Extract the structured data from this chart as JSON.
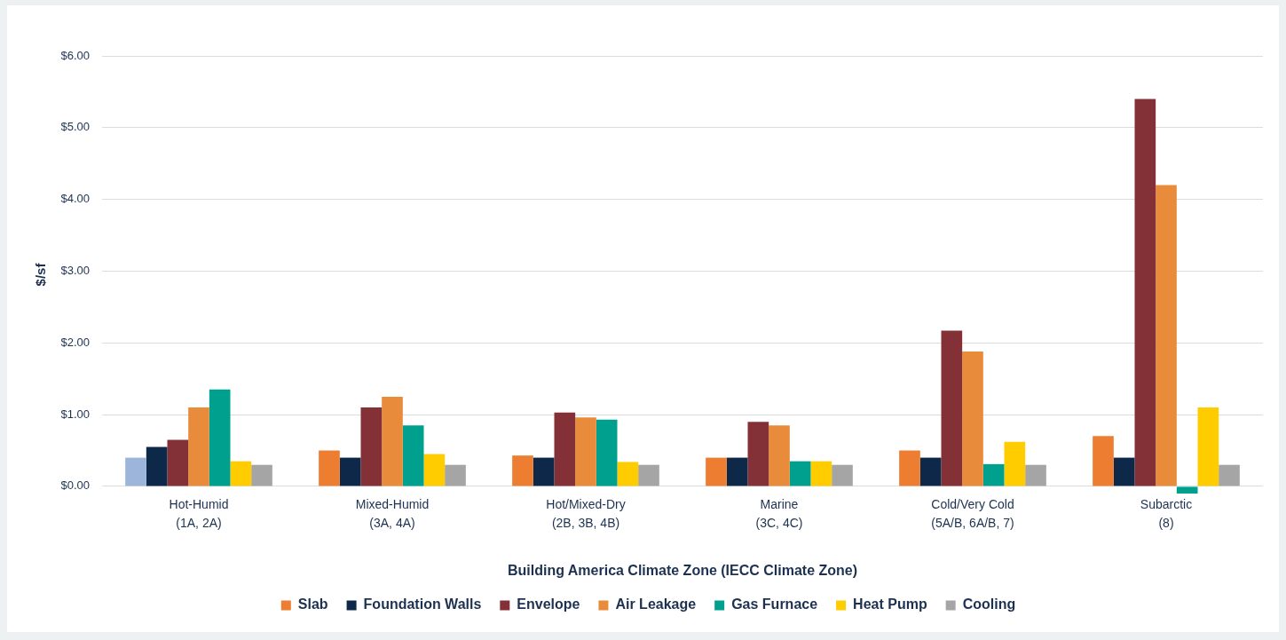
{
  "chart_data": {
    "type": "bar",
    "xlabel": "Building America Climate Zone (IECC Climate Zone)",
    "ylabel": "$/sf",
    "categories": [
      "Hot-Humid\n(1A, 2A)",
      "Mixed-Humid\n(3A, 4A)",
      "Hot/Mixed-Dry\n(2B, 3B, 4B)",
      "Marine\n(3C, 4C)",
      "Cold/Very Cold\n(5A/B, 6A/B, 7)",
      "Subarctic\n(8)"
    ],
    "series": [
      {
        "name": "Slab",
        "color": "#ed7d31",
        "colors": [
          "#9db5da",
          "#ed7d31",
          "#ed7d31",
          "#ed7d31",
          "#ed7d31",
          "#ed7d31"
        ],
        "values": [
          0.4,
          0.5,
          0.43,
          0.4,
          0.5,
          0.7
        ]
      },
      {
        "name": "Foundation Walls",
        "color": "#0d2849",
        "values": [
          0.55,
          0.4,
          0.4,
          0.4,
          0.4,
          0.4
        ]
      },
      {
        "name": "Envelope",
        "color": "#833137",
        "values": [
          0.65,
          1.1,
          1.03,
          0.9,
          2.17,
          5.4
        ]
      },
      {
        "name": "Air Leakage",
        "color": "#e88c3c",
        "values": [
          1.1,
          1.25,
          0.96,
          0.85,
          1.88,
          4.2
        ]
      },
      {
        "name": "Gas Furnace",
        "color": "#00a08f",
        "values": [
          1.35,
          0.85,
          0.93,
          0.35,
          0.31,
          -0.1
        ]
      },
      {
        "name": "Heat Pump",
        "color": "#ffcc00",
        "values": [
          0.35,
          0.45,
          0.34,
          0.35,
          0.62,
          1.1
        ]
      },
      {
        "name": "Cooling",
        "color": "#a5a5a5",
        "values": [
          0.3,
          0.3,
          0.3,
          0.3,
          0.3,
          0.3
        ]
      }
    ],
    "ylim": [
      -0.1,
      6
    ],
    "yticks": [
      {
        "value": 0,
        "label": "$0.00"
      },
      {
        "value": 1,
        "label": "$1.00"
      },
      {
        "value": 2,
        "label": "$2.00"
      },
      {
        "value": 3,
        "label": "$3.00"
      },
      {
        "value": 4,
        "label": "$4.00"
      },
      {
        "value": 5,
        "label": "$5.00"
      },
      {
        "value": 6,
        "label": "$6.00"
      }
    ],
    "grid": "y",
    "legend": "bottom"
  }
}
